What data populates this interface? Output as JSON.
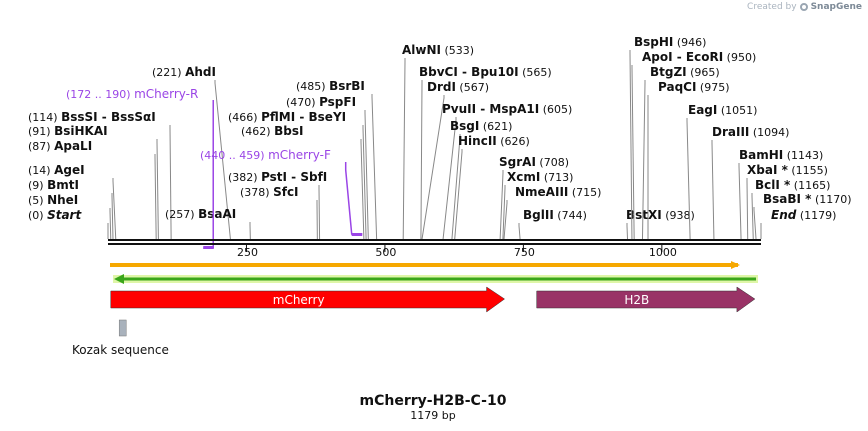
{
  "credit": {
    "prefix": "Created by",
    "brand": "SnapGene"
  },
  "sequence": {
    "name": "mCherry-H2B-C-10",
    "length_label": "1179 bp",
    "length": 1179
  },
  "axis_ticks": [
    {
      "label": "250",
      "pos": 250
    },
    {
      "label": "500",
      "pos": 500
    },
    {
      "label": "750",
      "pos": 750
    },
    {
      "label": "1000",
      "pos": 1000
    }
  ],
  "enzymes": [
    {
      "name": "Start",
      "pos_label": "(0)",
      "pos": 0,
      "italic": true
    },
    {
      "name": "NheI",
      "pos_label": "(5)",
      "pos": 5
    },
    {
      "name": "BmtI",
      "pos_label": "(9)",
      "pos": 9
    },
    {
      "name": "AgeI",
      "pos_label": "(14)",
      "pos": 14
    },
    {
      "name": "ApaLI",
      "pos_label": "(87)",
      "pos": 87
    },
    {
      "name": "BsiHKAI",
      "pos_label": "(91)",
      "pos": 91
    },
    {
      "name": "BssSI - BssSαI",
      "pos_label": "(114)",
      "pos": 114
    },
    {
      "name": "AhdI",
      "pos_label": "(221)",
      "pos": 221
    },
    {
      "name": "BsaAI",
      "pos_label": "(257)",
      "pos": 257
    },
    {
      "name": "SfcI",
      "pos_label": "(378)",
      "pos": 378
    },
    {
      "name": "PstI - SbfI",
      "pos_label": "(382)",
      "pos": 382
    },
    {
      "name": "BbsI",
      "pos_label": "(462)",
      "pos": 462
    },
    {
      "name": "PflMI - BseYI",
      "pos_label": "(466)",
      "pos": 466
    },
    {
      "name": "PspFI",
      "pos_label": "(470)",
      "pos": 470
    },
    {
      "name": "BsrBI",
      "pos_label": "(485)",
      "pos": 485
    },
    {
      "name": "AlwNI",
      "pos_label": "(533)",
      "pos": 533
    },
    {
      "name": "BbvCI - Bpu10I",
      "pos_label": "(565)",
      "pos": 565
    },
    {
      "name": "DrdI",
      "pos_label": "(567)",
      "pos": 567
    },
    {
      "name": "PvuII - MspA1I",
      "pos_label": "(605)",
      "pos": 605
    },
    {
      "name": "BsgI",
      "pos_label": "(621)",
      "pos": 621
    },
    {
      "name": "HincII",
      "pos_label": "(626)",
      "pos": 626
    },
    {
      "name": "SgrAI",
      "pos_label": "(708)",
      "pos": 708
    },
    {
      "name": "XcmI",
      "pos_label": "(713)",
      "pos": 713
    },
    {
      "name": "NmeAIII",
      "pos_label": "(715)",
      "pos": 715
    },
    {
      "name": "BglII",
      "pos_label": "(744)",
      "pos": 744
    },
    {
      "name": "BstXI",
      "pos_label": "(938)",
      "pos": 938
    },
    {
      "name": "PaqCI",
      "pos_label": "(975)",
      "pos": 975
    },
    {
      "name": "BtgZI",
      "pos_label": "(965)",
      "pos": 965
    },
    {
      "name": "ApoI - EcoRI",
      "pos_label": "(950)",
      "pos": 950
    },
    {
      "name": "BspHI",
      "pos_label": "(946)",
      "pos": 946
    },
    {
      "name": "EagI",
      "pos_label": "(1051)",
      "pos": 1051
    },
    {
      "name": "DraIII",
      "pos_label": "(1094)",
      "pos": 1094
    },
    {
      "name": "BamHI",
      "pos_label": "(1143)",
      "pos": 1143
    },
    {
      "name": "XbaI *",
      "pos_label": "(1155)",
      "pos": 1155
    },
    {
      "name": "BclI *",
      "pos_label": "(1165)",
      "pos": 1165
    },
    {
      "name": "BsaBI *",
      "pos_label": "(1170)",
      "pos": 1170
    },
    {
      "name": "End",
      "pos_label": "(1179)",
      "pos": 1179,
      "italic": true
    }
  ],
  "primers": [
    {
      "name": "mCherry-R",
      "range_label": "(172 .. 190)",
      "start": 172,
      "end": 190,
      "direction": "reverse"
    },
    {
      "name": "mCherry-F",
      "range_label": "(440 .. 459)",
      "start": 440,
      "end": 459,
      "direction": "forward"
    }
  ],
  "features": [
    {
      "name": "mCherry",
      "start": 5,
      "end": 716,
      "color": "#ff0000",
      "direction": "forward"
    },
    {
      "name": "H2B",
      "start": 774,
      "end": 1168,
      "color": "#993366",
      "direction": "forward"
    },
    {
      "name": "Kozak sequence",
      "start": 4,
      "end": 16,
      "color": "#a9b2bc",
      "direction": "none"
    }
  ],
  "colors": {
    "orf_forward": "#f6a800",
    "orf_reverse": "#3aa61a",
    "primer": "#9a45e6",
    "backbone": "#111111"
  }
}
